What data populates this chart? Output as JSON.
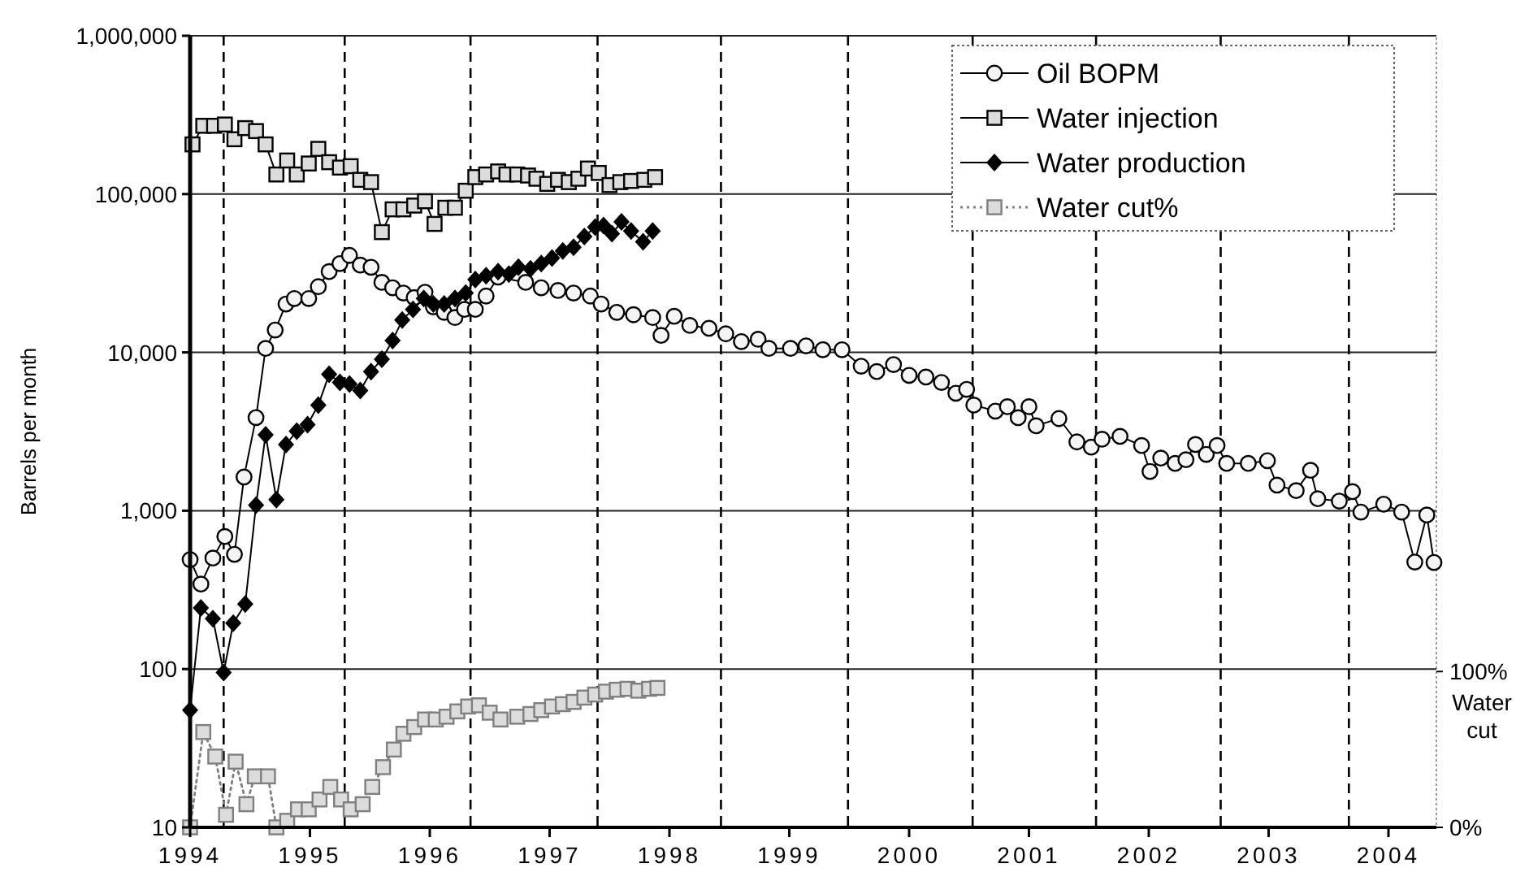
{
  "chart_data": {
    "type": "line",
    "ylabel": "Barrels per month",
    "y2label": "Water cut",
    "log": true,
    "grid": "y",
    "legend": "top right",
    "xlim": [
      1994,
      2004.4
    ],
    "xticks": [
      1994,
      1995,
      1996,
      1997,
      1998,
      1999,
      2000,
      2001,
      2002,
      2003,
      2004
    ],
    "ylim": [
      10,
      1000000
    ],
    "yticks": [
      10,
      100,
      {
        "value": 1000,
        "label": "1,000"
      },
      {
        "value": 10000,
        "label": "10,000"
      },
      {
        "value": 100000,
        "label": "100,000"
      },
      {
        "value": 1000000,
        "label": "1,000,000"
      }
    ],
    "y2lim": [
      0,
      508
    ],
    "y2ticks": [
      {
        "value": 100,
        "label": "100%"
      },
      {
        "value": 0,
        "label": "0%"
      }
    ],
    "series": [
      {
        "name": "Oil BOPM",
        "color": "#000000",
        "marker": "circle",
        "x": [
          1994.0,
          1994.09,
          1994.19,
          1994.29,
          1994.37,
          1994.45,
          1994.55,
          1994.63,
          1994.71,
          1994.8,
          1994.87,
          1994.99,
          1995.07,
          1995.16,
          1995.25,
          1995.33,
          1995.42,
          1995.51,
          1995.6,
          1995.69,
          1995.78,
          1995.87,
          1995.96,
          1996.03,
          1996.12,
          1996.21,
          1996.29,
          1996.38,
          1996.47,
          1996.57,
          1996.8,
          1996.93,
          1997.07,
          1997.2,
          1997.34,
          1997.43,
          1997.56,
          1997.7,
          1997.86,
          1997.93,
          1998.04,
          1998.17,
          1998.33,
          1998.47,
          1998.6,
          1998.74,
          1998.83,
          1999.01,
          1999.14,
          1999.28,
          1999.44,
          1999.6,
          1999.73,
          1999.87,
          2000.0,
          2000.14,
          2000.27,
          2000.39,
          2000.48,
          2000.54,
          2000.72,
          2000.82,
          2000.91,
          2001.0,
          2001.06,
          2001.25,
          2001.4,
          2001.52,
          2001.61,
          2001.76,
          2001.94,
          2002.01,
          2002.1,
          2002.22,
          2002.31,
          2002.39,
          2002.48,
          2002.57,
          2002.65,
          2002.83,
          2002.99,
          2003.07,
          2003.23,
          2003.35,
          2003.41,
          2003.59,
          2003.7,
          2003.77,
          2003.96,
          2004.11,
          2004.22,
          2004.32,
          2004.38
        ],
        "values": [
          491,
          344,
          502,
          687,
          530,
          1633,
          3873,
          10600,
          13840,
          20200,
          21900,
          21900,
          26000,
          32400,
          36400,
          41000,
          35600,
          34500,
          27700,
          25600,
          23700,
          22200,
          24000,
          19400,
          17900,
          16600,
          18700,
          18700,
          22700,
          29900,
          27700,
          25600,
          24600,
          23700,
          22700,
          20200,
          17900,
          17300,
          16600,
          12800,
          16900,
          14800,
          14200,
          13100,
          11700,
          12100,
          10600,
          10600,
          11000,
          10400,
          10400,
          8180,
          7570,
          8380,
          7160,
          6990,
          6460,
          5520,
          5840,
          4650,
          4260,
          4540,
          3870,
          4540,
          3440,
          3820,
          2720,
          2520,
          2830,
          2950,
          2580,
          1770,
          2150,
          1990,
          2100,
          2620,
          2270,
          2580,
          1990,
          1990,
          2070,
          1450,
          1340,
          1800,
          1190,
          1150,
          1320,
          980,
          1100,
          980,
          474,
          940,
          471
        ]
      },
      {
        "name": "Water injection",
        "color": "#000000",
        "marker": "square",
        "x": [
          1994.02,
          1994.11,
          1994.2,
          1994.29,
          1994.37,
          1994.46,
          1994.55,
          1994.63,
          1994.72,
          1994.81,
          1994.89,
          1994.99,
          1995.07,
          1995.16,
          1995.25,
          1995.34,
          1995.42,
          1995.51,
          1995.6,
          1995.69,
          1995.78,
          1995.87,
          1995.96,
          1996.04,
          1996.13,
          1996.21,
          1996.3,
          1996.38,
          1996.47,
          1996.57,
          1996.64,
          1996.73,
          1996.82,
          1996.89,
          1996.98,
          1997.07,
          1997.16,
          1997.24,
          1997.32,
          1997.41,
          1997.5,
          1997.59,
          1997.68,
          1997.79,
          1997.88
        ],
        "values": [
          206000,
          270000,
          270000,
          275000,
          222000,
          261000,
          250000,
          206000,
          133000,
          163000,
          133000,
          156000,
          193000,
          159000,
          147000,
          150000,
          123000,
          119000,
          57500,
          80100,
          80100,
          84600,
          90100,
          64800,
          82000,
          82000,
          105000,
          128000,
          133000,
          139000,
          133000,
          133000,
          131000,
          125000,
          116000,
          123000,
          119000,
          125000,
          145000,
          136000,
          114000,
          119000,
          121000,
          123000,
          128000
        ]
      },
      {
        "name": "Water production",
        "color": "#000000",
        "marker": "diamond",
        "x": [
          1994.0,
          1994.09,
          1994.19,
          1994.28,
          1994.36,
          1994.46,
          1994.55,
          1994.63,
          1994.72,
          1994.8,
          1994.89,
          1994.98,
          1995.07,
          1995.16,
          1995.25,
          1995.33,
          1995.42,
          1995.51,
          1995.6,
          1995.69,
          1995.77,
          1995.86,
          1995.95,
          1996.03,
          1996.12,
          1996.21,
          1996.3,
          1996.38,
          1996.47,
          1996.57,
          1996.66,
          1996.74,
          1996.84,
          1996.93,
          1997.02,
          1997.11,
          1997.2,
          1997.29,
          1997.38,
          1997.45,
          1997.52,
          1997.6,
          1997.68,
          1997.78,
          1997.86
        ],
        "values": [
          55,
          243,
          208,
          95,
          195,
          257,
          1084,
          3020,
          1175,
          2620,
          3180,
          3500,
          4650,
          7270,
          6460,
          6310,
          5740,
          7570,
          9060,
          11900,
          16000,
          18700,
          21900,
          20200,
          20200,
          21900,
          23700,
          28800,
          30500,
          32400,
          31200,
          34500,
          33700,
          36400,
          39500,
          43700,
          46100,
          54000,
          61800,
          63300,
          56200,
          66800,
          58400,
          50000,
          58400
        ]
      },
      {
        "name": "Water cut%",
        "color": "#7f7f7f",
        "marker": "square",
        "line_style": "dotted",
        "x": [
          1994.0,
          1994.11,
          1994.21,
          1994.3,
          1994.38,
          1994.47,
          1994.54,
          1994.65,
          1994.72,
          1994.81,
          1994.9,
          1994.99,
          1995.08,
          1995.17,
          1995.26,
          1995.34,
          1995.44,
          1995.52,
          1995.61,
          1995.7,
          1995.78,
          1995.87,
          1995.96,
          1996.05,
          1996.14,
          1996.23,
          1996.32,
          1996.41,
          1996.5,
          1996.59,
          1996.73,
          1996.84,
          1996.93,
          1997.02,
          1997.11,
          1997.2,
          1997.29,
          1997.38,
          1997.47,
          1997.56,
          1997.65,
          1997.74,
          1997.83,
          1997.9
        ],
        "values": [
          10,
          40,
          28,
          12,
          26,
          14,
          21,
          21,
          10,
          11,
          13,
          13,
          15,
          18,
          15,
          13,
          14,
          18,
          24,
          31,
          39,
          43,
          48,
          48,
          50,
          54,
          58,
          59,
          53,
          48,
          50,
          52,
          55,
          58,
          60,
          62,
          66,
          69,
          72,
          74,
          75,
          73,
          75,
          76
        ]
      }
    ],
    "ref_lines": [
      {
        "axis": "x",
        "value": 1994.28,
        "line_style": "dashed",
        "color": "#000000"
      },
      {
        "axis": "x",
        "value": 1995.29,
        "line_style": "dashed",
        "color": "#000000"
      },
      {
        "axis": "x",
        "value": 1996.34,
        "line_style": "dashed",
        "color": "#000000"
      },
      {
        "axis": "x",
        "value": 1997.4,
        "line_style": "dashed",
        "color": "#000000"
      },
      {
        "axis": "x",
        "value": 1998.43,
        "line_style": "dashed",
        "color": "#000000"
      },
      {
        "axis": "x",
        "value": 1999.49,
        "line_style": "dashed",
        "color": "#000000"
      },
      {
        "axis": "x",
        "value": 2000.53,
        "line_style": "dashed",
        "color": "#000000"
      },
      {
        "axis": "x",
        "value": 2001.56,
        "line_style": "dashed",
        "color": "#000000"
      },
      {
        "axis": "x",
        "value": 2002.6,
        "line_style": "dashed",
        "color": "#000000"
      },
      {
        "axis": "x",
        "value": 2003.67,
        "line_style": "dashed",
        "color": "#000000"
      }
    ]
  }
}
